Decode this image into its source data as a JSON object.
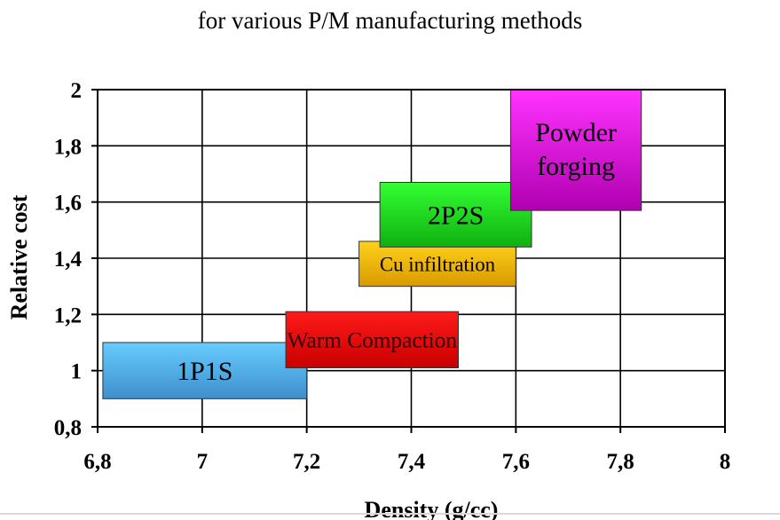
{
  "chart_data": {
    "type": "range-box",
    "title": "for various  P/M manufacturing methods",
    "xlabel": "Density (g/cc)",
    "ylabel": "Relative cost",
    "xlim": [
      6.8,
      8
    ],
    "ylim": [
      0.8,
      2
    ],
    "x_ticks": [
      "6,8",
      "7",
      "7,2",
      "7,4",
      "7,6",
      "7,8",
      "8"
    ],
    "y_ticks": [
      "0,8",
      "1",
      "1,2",
      "1,4",
      "1,6",
      "1,8",
      "2"
    ],
    "grid": true,
    "boxes": [
      {
        "name": "1P1S",
        "x_range": [
          6.81,
          7.2
        ],
        "y_range": [
          0.9,
          1.1
        ],
        "color_top": "#66ccff",
        "color_bottom": "#3f8fcc",
        "text_color": "#000000"
      },
      {
        "name": "Warm Compaction",
        "x_range": [
          7.16,
          7.49
        ],
        "y_range": [
          1.01,
          1.21
        ],
        "color_top": "#ff1a1a",
        "color_bottom": "#c80000",
        "text_color": "#330000"
      },
      {
        "name": "Cu infiltration",
        "x_range": [
          7.3,
          7.6
        ],
        "y_range": [
          1.3,
          1.46
        ],
        "color_top": "#ffd21a",
        "color_bottom": "#d99a00",
        "text_color": "#000000"
      },
      {
        "name": "2P2S",
        "x_range": [
          7.34,
          7.63
        ],
        "y_range": [
          1.44,
          1.67
        ],
        "color_top": "#33ff33",
        "color_bottom": "#10b010",
        "text_color": "#000000"
      },
      {
        "name": "Powder forging",
        "x_range": [
          7.59,
          7.84
        ],
        "y_range": [
          1.57,
          2.0
        ],
        "color_top": "#ff33ff",
        "color_bottom": "#b000b0",
        "text_color": "#000000"
      }
    ]
  }
}
